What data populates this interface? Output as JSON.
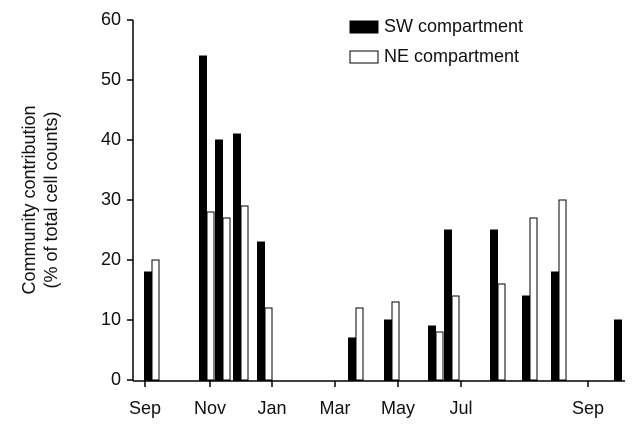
{
  "chart_data": {
    "type": "bar",
    "ylabel": [
      "Community contribution",
      "(% of total cell counts)"
    ],
    "categories": [
      null,
      null,
      null,
      null,
      null,
      null,
      null,
      null,
      null,
      null,
      null,
      null,
      null
    ],
    "xtick_labels": [
      "Sep",
      "Nov",
      "Jan",
      "Mar",
      "May",
      "Jul",
      "Sep"
    ],
    "series": [
      {
        "name": "SW compartment",
        "color": "#000000",
        "values": [
          18,
          54,
          40,
          41,
          23,
          7,
          10,
          9,
          25,
          25,
          14,
          18,
          10
        ]
      },
      {
        "name": "NE compartment",
        "color": "#ffffff",
        "values": [
          20,
          28,
          27,
          29,
          12,
          12,
          13,
          8,
          14,
          16,
          27,
          30,
          0
        ]
      }
    ],
    "ylim": [
      0,
      60
    ],
    "yticks": [
      0,
      10,
      20,
      30,
      40,
      50,
      60
    ],
    "legend": "upper right"
  }
}
